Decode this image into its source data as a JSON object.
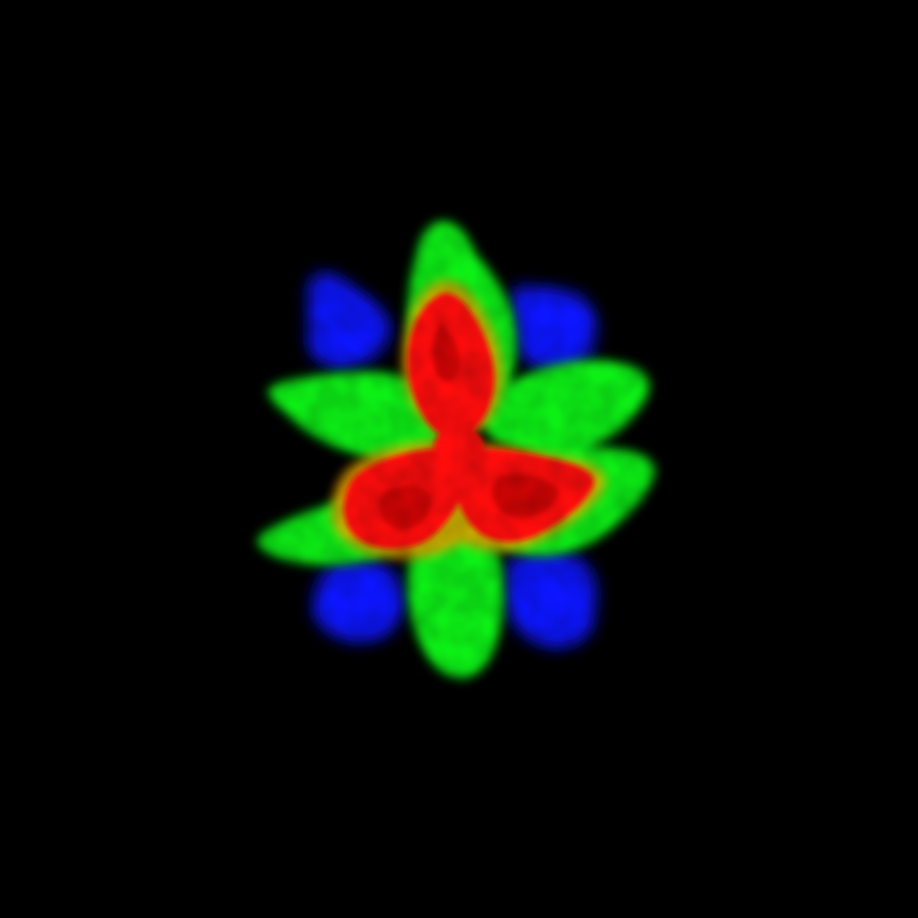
{
  "image": {
    "background_color": "#000000",
    "palette": {
      "blue": "#0a14ff",
      "green": "#10f018",
      "red": "#ff0a08",
      "dark_red": "#a50000",
      "orange_rim": "#e8a000"
    }
  }
}
